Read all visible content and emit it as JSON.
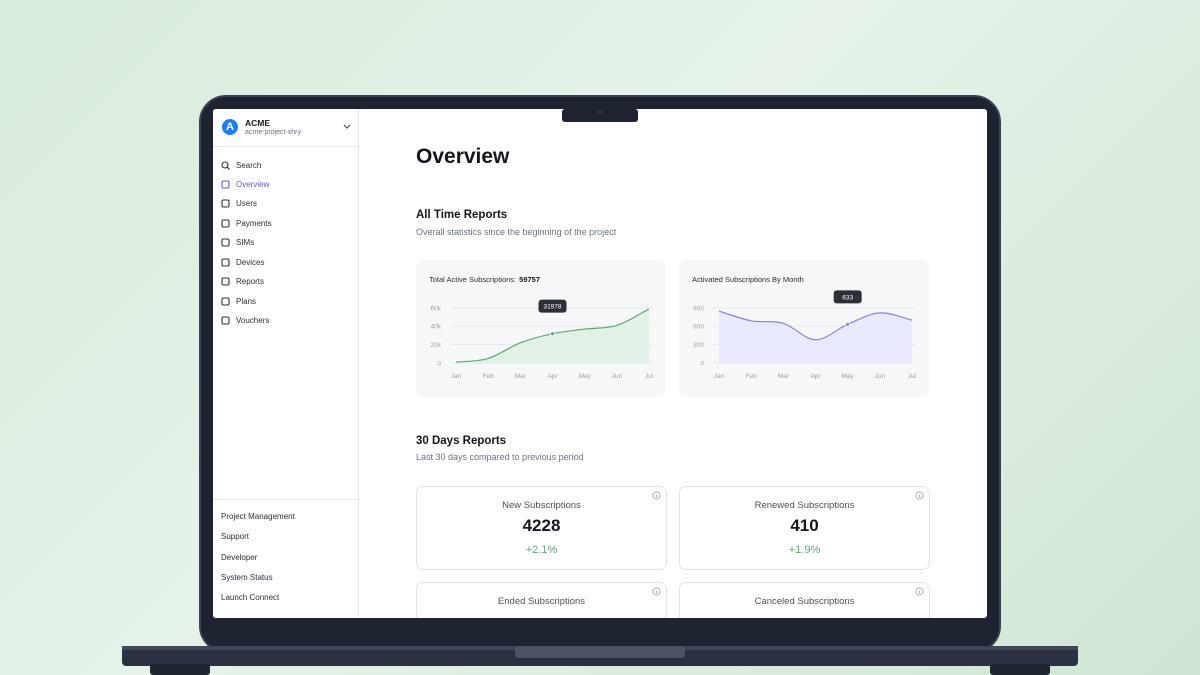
{
  "sidebar": {
    "org_initial": "A",
    "org_name": "ACME",
    "project": "acme-project-xhry",
    "nav": [
      {
        "label": "Search"
      },
      {
        "label": "Overview",
        "active": true
      },
      {
        "label": "Users"
      },
      {
        "label": "Payments"
      },
      {
        "label": "SIMs"
      },
      {
        "label": "Devices"
      },
      {
        "label": "Reports"
      },
      {
        "label": "Plans"
      },
      {
        "label": "Vouchers"
      }
    ],
    "links": [
      "Project Management",
      "Support",
      "Developer",
      "System Status",
      "Launch Connect"
    ]
  },
  "main": {
    "title": "Overview",
    "all_time": {
      "title": "All Time Reports",
      "subtitle": "Overall statistics since the beginning of the project",
      "charts": [
        {
          "type": "area",
          "title": "Total Active Subscriptions:",
          "total": 59757,
          "color": "#5fa874",
          "fill": "#e2f1e5",
          "categories": [
            "Jan",
            "Feb",
            "Mar",
            "Apr",
            "May",
            "Jun",
            "Jul"
          ],
          "values": [
            1000,
            5000,
            22000,
            31978,
            37000,
            41000,
            59000
          ],
          "ylim": [
            0,
            60000
          ],
          "yticks": [
            {
              "value": 0,
              "label": "0"
            },
            {
              "value": 20000,
              "label": "20k"
            },
            {
              "value": 40000,
              "label": "40k"
            },
            {
              "value": 60000,
              "label": "60k"
            }
          ],
          "highlight": 3,
          "grid": true
        },
        {
          "type": "area",
          "title": "Activated Subscriptions By Month",
          "color": "#8189d6",
          "fill": "#e8eafb",
          "categories": [
            "Jan",
            "Feb",
            "Mar",
            "Apr",
            "May",
            "Jun",
            "Jul"
          ],
          "values": [
            850,
            690,
            650,
            380,
            633,
            820,
            700
          ],
          "ylim": [
            0,
            900
          ],
          "yticks": [
            0,
            300,
            600,
            900
          ],
          "highlight": 4,
          "grid": true
        }
      ]
    },
    "thirty_days": {
      "title": "30 Days Reports",
      "subtitle": "Last 30 days compared to previous period",
      "stats": [
        {
          "label": "New Subscriptions",
          "value": 4228,
          "change": 2.1,
          "change_label": "+2.1%"
        },
        {
          "label": "Renewed Subscriptions",
          "value": 410,
          "change": 1.9,
          "change_label": "+1.9%"
        },
        {
          "label": "Ended Subscriptions"
        },
        {
          "label": "Canceled Subscriptions"
        }
      ]
    }
  }
}
